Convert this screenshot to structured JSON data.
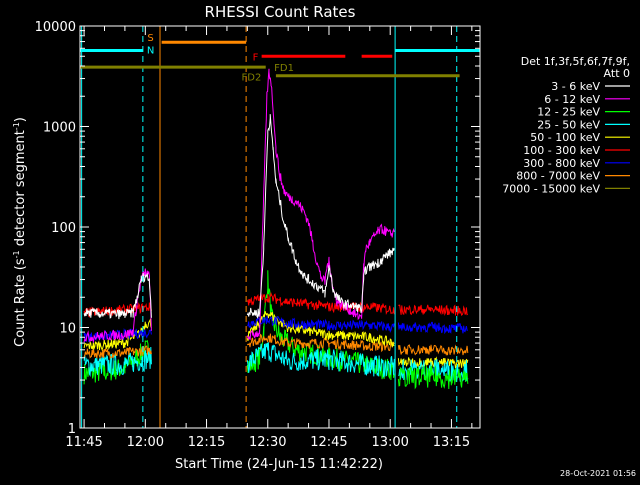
{
  "chart_data": {
    "type": "line",
    "title": "RHESSI Count Rates",
    "xlabel": "Start Time (24-Jun-15 11:42:22)",
    "ylabel_prefix": "Count Rate (s",
    "ylabel_exp": "-1",
    "ylabel_suffix": " detector segment",
    "ylabel_end": ")",
    "y_scale": "log",
    "ylim": [
      1,
      10000
    ],
    "xlim_minutes": [
      -1,
      97
    ],
    "grid": false,
    "x_ticks": [
      {
        "minute": 0,
        "label": "11:45"
      },
      {
        "minute": 15,
        "label": "12:00"
      },
      {
        "minute": 30,
        "label": "12:15"
      },
      {
        "minute": 45,
        "label": "12:30"
      },
      {
        "minute": 60,
        "label": "12:45"
      },
      {
        "minute": 75,
        "label": "13:00"
      },
      {
        "minute": 90,
        "label": "13:15"
      }
    ],
    "y_ticks": [
      {
        "value": 1,
        "label": "1"
      },
      {
        "value": 10,
        "label": "10"
      },
      {
        "value": 100,
        "label": "100"
      },
      {
        "value": 1000,
        "label": "1000"
      },
      {
        "value": 10000,
        "label": "10000"
      }
    ],
    "legend": {
      "placement": "right",
      "header_line1": "Det 1f,3f,5f,6f,7f,9f,",
      "header_line2": "Att 0"
    },
    "series": [
      {
        "name": "3 - 6 keV",
        "color": "#ffffff",
        "points": [
          [
            0,
            14
          ],
          [
            10,
            13.5
          ],
          [
            12,
            14
          ],
          [
            13,
            20
          ],
          [
            14,
            30
          ],
          [
            15,
            33
          ],
          [
            16,
            30
          ],
          [
            16.5,
            14
          ]
        ],
        "points2": [
          [
            40,
            14
          ],
          [
            43,
            14
          ],
          [
            44,
            60
          ],
          [
            45,
            900
          ],
          [
            45.6,
            1200
          ],
          [
            46.3,
            600
          ],
          [
            47,
            280
          ],
          [
            48,
            180
          ],
          [
            49,
            110
          ],
          [
            50,
            80
          ],
          [
            51,
            60
          ],
          [
            52,
            45
          ],
          [
            53,
            38
          ],
          [
            54,
            32
          ],
          [
            55,
            30
          ],
          [
            56,
            28
          ],
          [
            57,
            26
          ],
          [
            58,
            24
          ],
          [
            59,
            22
          ],
          [
            59.5,
            28
          ],
          [
            60,
            40
          ],
          [
            60.5,
            32
          ],
          [
            61,
            24
          ],
          [
            62,
            20
          ],
          [
            63,
            18
          ],
          [
            64,
            17
          ],
          [
            65,
            17
          ],
          [
            66,
            16
          ],
          [
            67,
            16
          ],
          [
            68,
            15
          ],
          [
            68.5,
            30
          ],
          [
            69,
            38
          ],
          [
            70,
            40
          ],
          [
            71,
            42
          ],
          [
            72,
            44
          ],
          [
            73,
            48
          ],
          [
            74,
            52
          ],
          [
            75,
            55
          ],
          [
            76,
            60
          ]
        ]
      },
      {
        "name": "6 - 12 keV",
        "color": "#ff00ff",
        "points": [
          [
            0,
            8
          ],
          [
            10,
            8.5
          ],
          [
            12,
            9
          ],
          [
            13,
            18
          ],
          [
            14,
            30
          ],
          [
            15,
            36
          ],
          [
            16,
            32
          ],
          [
            16.5,
            9
          ]
        ],
        "points2": [
          [
            40,
            8
          ],
          [
            43,
            9
          ],
          [
            44,
            200
          ],
          [
            44.8,
            2000
          ],
          [
            45.3,
            3500
          ],
          [
            45.8,
            2800
          ],
          [
            46.5,
            1200
          ],
          [
            47,
            600
          ],
          [
            48,
            320
          ],
          [
            49,
            230
          ],
          [
            50,
            200
          ],
          [
            51,
            190
          ],
          [
            52,
            180
          ],
          [
            53,
            160
          ],
          [
            54,
            140
          ],
          [
            55,
            110
          ],
          [
            56,
            70
          ],
          [
            57,
            45
          ],
          [
            58,
            32
          ],
          [
            59,
            28
          ],
          [
            59.5,
            40
          ],
          [
            60,
            45
          ],
          [
            60.5,
            35
          ],
          [
            61,
            24
          ],
          [
            62,
            18
          ],
          [
            63,
            17
          ],
          [
            64,
            16
          ],
          [
            65,
            15
          ],
          [
            66,
            14
          ],
          [
            67,
            13
          ],
          [
            68,
            13
          ],
          [
            68.5,
            40
          ],
          [
            69,
            60
          ],
          [
            70,
            70
          ],
          [
            71,
            80
          ],
          [
            72,
            90
          ],
          [
            73,
            95
          ],
          [
            74,
            90
          ],
          [
            75,
            85
          ],
          [
            76,
            90
          ]
        ]
      },
      {
        "name": "12 - 25 keV",
        "color": "#00ff00",
        "points": [
          [
            0,
            3.5
          ],
          [
            5,
            3.6
          ],
          [
            10,
            4
          ],
          [
            13,
            5
          ],
          [
            15,
            6
          ],
          [
            16.5,
            6
          ]
        ],
        "points2": [
          [
            40,
            4
          ],
          [
            43,
            5
          ],
          [
            44,
            10
          ],
          [
            45,
            30
          ],
          [
            46,
            12
          ],
          [
            48,
            8
          ],
          [
            52,
            6
          ],
          [
            56,
            5.5
          ],
          [
            60,
            5
          ],
          [
            66,
            4.5
          ],
          [
            72,
            4
          ],
          [
            76,
            3.8
          ]
        ]
      },
      {
        "name": "25 - 50 keV",
        "color": "#00ffff",
        "points": [
          [
            0,
            4.2
          ],
          [
            10,
            4.3
          ],
          [
            16.5,
            5
          ]
        ],
        "points2": [
          [
            40,
            4.4
          ],
          [
            45,
            6
          ],
          [
            50,
            4.6
          ],
          [
            60,
            4.8
          ],
          [
            70,
            4.2
          ],
          [
            76,
            4
          ]
        ]
      },
      {
        "name": "50 - 100 keV",
        "color": "#ffff00",
        "points": [
          [
            0,
            6.5
          ],
          [
            10,
            7
          ],
          [
            14,
            9
          ],
          [
            15,
            11
          ],
          [
            16.5,
            11
          ]
        ],
        "points2": [
          [
            40,
            8
          ],
          [
            45,
            14
          ],
          [
            50,
            10
          ],
          [
            56,
            9
          ],
          [
            60,
            8.5
          ],
          [
            70,
            8
          ],
          [
            76,
            7
          ]
        ]
      },
      {
        "name": "100 - 300 keV",
        "color": "#ff0000",
        "points": [
          [
            0,
            14
          ],
          [
            10,
            15
          ],
          [
            16.5,
            16
          ]
        ],
        "points2": [
          [
            40,
            18
          ],
          [
            45,
            20
          ],
          [
            50,
            18
          ],
          [
            60,
            16
          ],
          [
            70,
            16
          ],
          [
            76,
            15
          ]
        ]
      },
      {
        "name": "300 - 800 keV",
        "color": "#0000ff",
        "points": [
          [
            0,
            8
          ],
          [
            10,
            8.5
          ],
          [
            16.5,
            9
          ]
        ],
        "points2": [
          [
            40,
            11
          ],
          [
            45,
            12
          ],
          [
            50,
            11
          ],
          [
            60,
            10.5
          ],
          [
            70,
            10.5
          ],
          [
            76,
            10
          ]
        ]
      },
      {
        "name": "800 - 7000 keV",
        "color": "#ff8800",
        "points": [
          [
            0,
            5.5
          ],
          [
            10,
            5.6
          ],
          [
            16.5,
            6
          ]
        ],
        "points2": [
          [
            40,
            7
          ],
          [
            45,
            8
          ],
          [
            50,
            7
          ],
          [
            60,
            7
          ],
          [
            70,
            6.5
          ],
          [
            76,
            6.5
          ]
        ]
      },
      {
        "name": "7000 - 15000 keV",
        "color": "#808000",
        "points": [],
        "points2": []
      }
    ],
    "continuation": {
      "points": [
        [
          77,
          11
        ],
        [
          80,
          11
        ],
        [
          85,
          11.5
        ],
        [
          90,
          10
        ],
        [
          94,
          10
        ]
      ],
      "colors": [
        "#ff0000",
        "#0000ff",
        "#ff8800",
        "#ffff00",
        "#00ffff",
        "#00ff00"
      ],
      "levels": [
        15,
        10,
        6,
        4.5,
        3.8,
        3.2
      ]
    },
    "vlines": [
      {
        "minute": -0.6,
        "color": "#00ffff",
        "dash": false
      },
      {
        "minute": 14.4,
        "color": "#00ffff",
        "dash": true
      },
      {
        "minute": 18.6,
        "color": "#ff8800",
        "dash": false
      },
      {
        "minute": 39.7,
        "color": "#ff8800",
        "dash": true
      },
      {
        "minute": 76.2,
        "color": "#00ffff",
        "dash": false
      },
      {
        "minute": 91.3,
        "color": "#00ffff",
        "dash": true
      }
    ],
    "flag_bars": [
      {
        "label": "N",
        "label_color": "#00ffff",
        "color": "#00ffff",
        "y": 5700,
        "segments": [
          [
            -1,
            14.4
          ],
          [
            76.2,
            97
          ]
        ]
      },
      {
        "label": "S",
        "label_color": "#ff8800",
        "color": "#ff8800",
        "y": 6900,
        "segments": [
          [
            19,
            39.7
          ]
        ]
      },
      {
        "label": "F",
        "label_color": "#ff0000",
        "color": "#ff0000",
        "y": 5000,
        "segments": [
          [
            43.5,
            64
          ],
          [
            68,
            75.5
          ]
        ]
      },
      {
        "label": "FD1",
        "label_color": "#808000",
        "color": "#808000",
        "y": 3900,
        "segments": [
          [
            -1,
            44.5
          ]
        ]
      },
      {
        "label": "FD2",
        "label_color": "#808000",
        "color": "#808000",
        "y": 3200,
        "segments": [
          [
            47,
            92
          ]
        ]
      }
    ]
  },
  "footer": {
    "stamp": "28-Oct-2021 01:56"
  }
}
